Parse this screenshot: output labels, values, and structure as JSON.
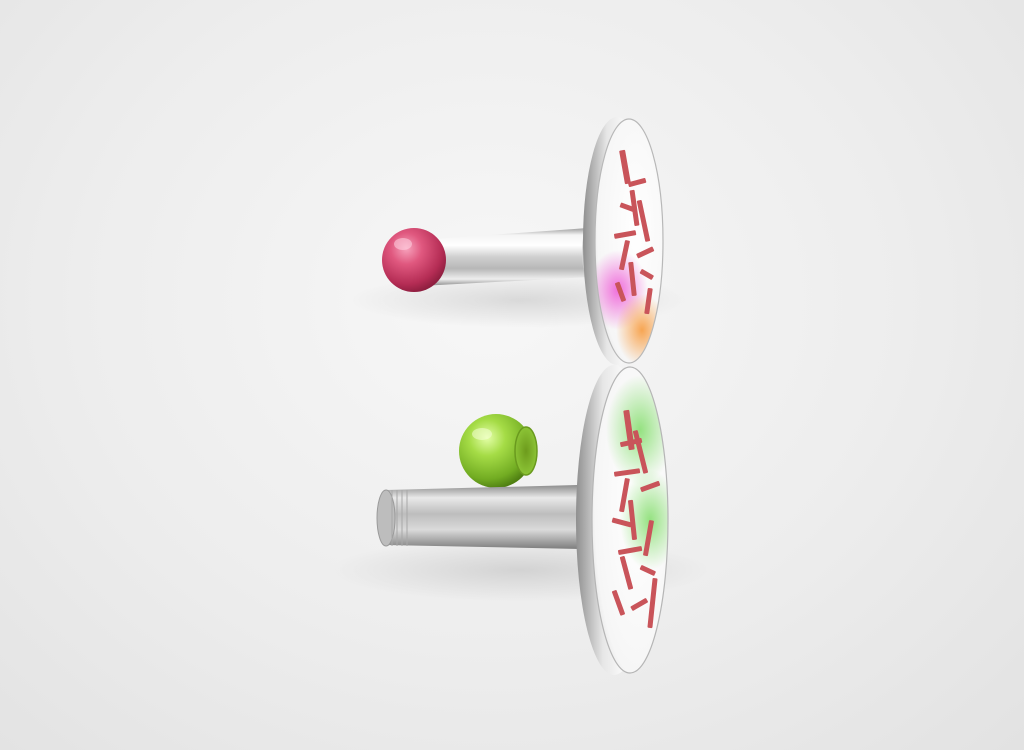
{
  "scene": {
    "subject": "two-cufflinks-render",
    "colors": {
      "background": "#ececec",
      "chrome_light": "#fafafa",
      "chrome_mid": "#c9c9c9",
      "chrome_dark": "#8a8a8a",
      "pink_ball": "#d6476f",
      "green_ball": "#93d13a",
      "glyph_red": "#c9545a",
      "wash_magenta": "#ee5fd7",
      "wash_orange": "#f5a14a",
      "wash_green": "#8fe07a"
    },
    "cufflinks": [
      {
        "id": "top",
        "ball_color": "pink",
        "face_wash": [
          "magenta",
          "orange"
        ]
      },
      {
        "id": "bottom",
        "ball_color": "green",
        "face_wash": [
          "green"
        ]
      }
    ]
  }
}
